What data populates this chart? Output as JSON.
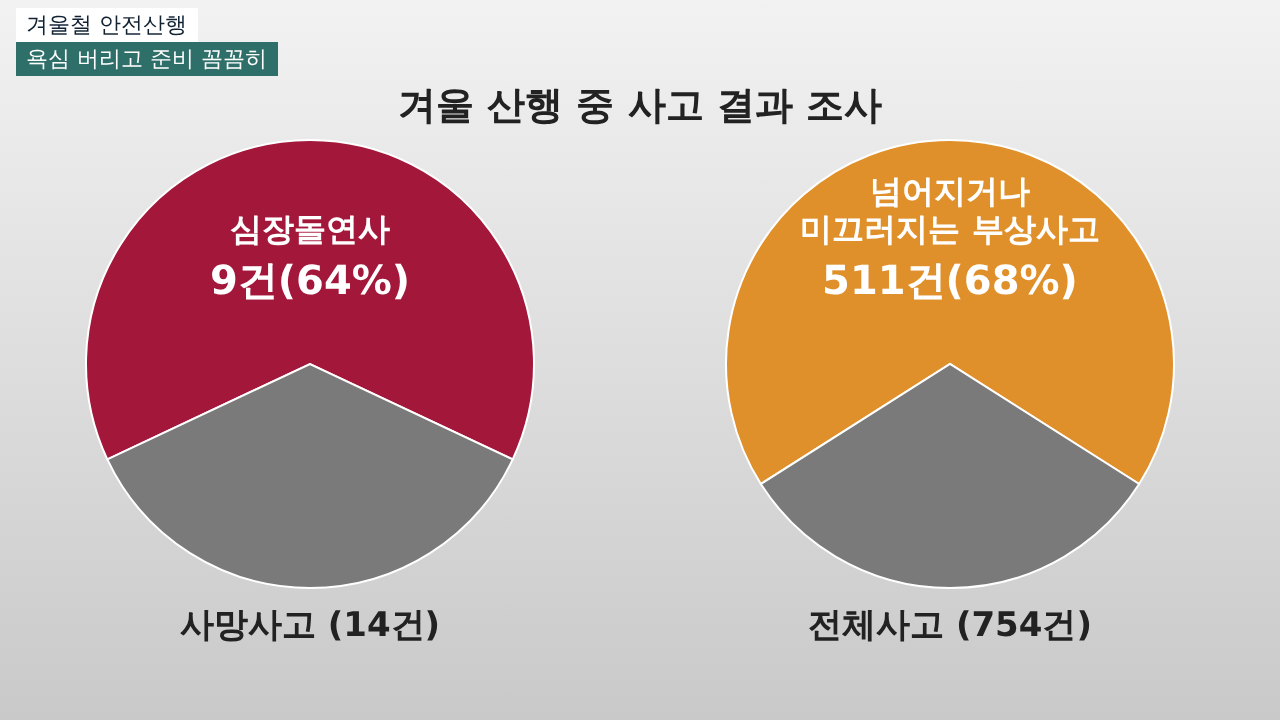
{
  "chart_data": [
    {
      "type": "pie",
      "title": "사망사고 (14건)",
      "categories": [
        "심장돌연사",
        null
      ],
      "values": [
        64,
        36
      ],
      "colors": [
        "#a3173a",
        "#7a7a7a"
      ],
      "value_labels": [
        "9건(64%)",
        null
      ],
      "annotations": [
        "겨울철 안전산행",
        "욕심 버리고 준비 꼼꼼히",
        "겨울 산행 중 사고 결과 조사"
      ]
    },
    {
      "type": "pie",
      "title": "전체사고 (754건)",
      "categories": [
        "넘어지거나\n미끄러지는 부상사고",
        null
      ],
      "values": [
        68,
        32
      ],
      "colors": [
        "#e0902a",
        "#7a7a7a"
      ],
      "value_labels": [
        "511건(68%)",
        null
      ]
    }
  ]
}
